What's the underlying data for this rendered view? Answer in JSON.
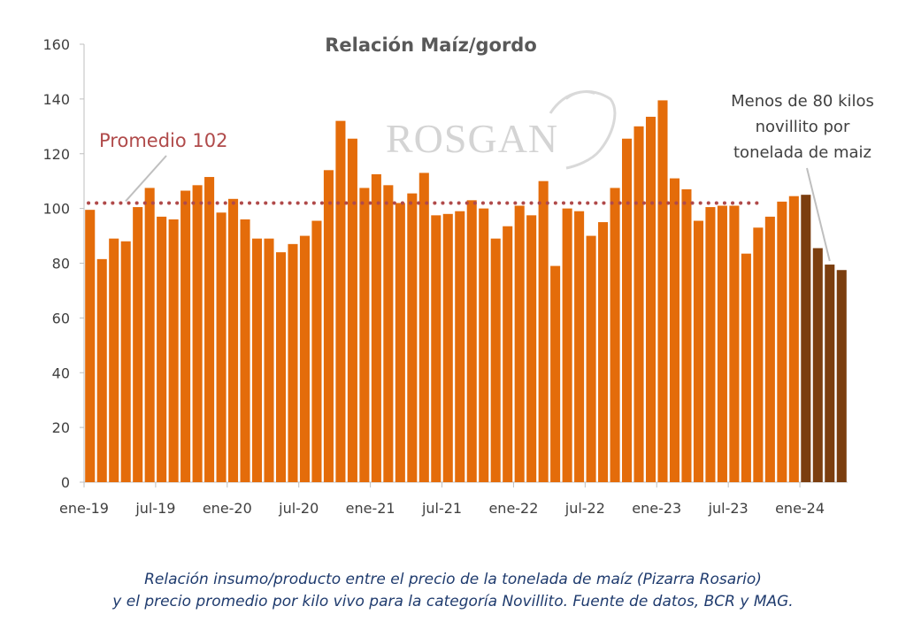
{
  "chart_data": {
    "type": "bar",
    "title": "Relación Maíz/gordo",
    "ylim": [
      0,
      160
    ],
    "yticks": [
      0,
      20,
      40,
      60,
      80,
      100,
      120,
      140,
      160
    ],
    "xtick_labels": [
      "ene-19",
      "jul-19",
      "ene-20",
      "jul-20",
      "ene-21",
      "jul-21",
      "ene-22",
      "jul-22",
      "ene-23",
      "jul-23",
      "ene-24"
    ],
    "values": [
      99.5,
      81.5,
      89,
      88,
      100.5,
      107.5,
      97,
      96,
      106.5,
      108.5,
      111.5,
      98.5,
      103.5,
      96,
      89,
      89,
      84,
      87,
      90,
      95.5,
      114,
      132,
      125.5,
      107.5,
      112.5,
      108.5,
      102,
      105.5,
      113,
      97.5,
      98,
      99,
      103,
      100,
      89,
      93.5,
      101,
      97.5,
      110,
      79,
      100,
      99,
      90,
      95,
      107.5,
      125.5,
      130,
      133.5,
      139.5,
      111,
      107,
      95.5,
      100.5,
      101,
      101,
      83.5,
      93,
      97,
      102.5,
      104.5,
      105,
      85.5,
      79.5,
      77.5
    ],
    "highlight_start_index": 60,
    "average": {
      "value": 102,
      "label": "Promedio 102"
    },
    "annotation": [
      "Menos de 80 kilos",
      "novillito por",
      "tonelada de maiz"
    ],
    "watermark": "ROSGAN",
    "colors": {
      "bar": "#e46c0a",
      "bar_highlight": "#7b3e0f",
      "average_line": "#b04a4a",
      "axis": "#bfbfbf"
    }
  },
  "caption": {
    "line1": "Relación insumo/producto entre el precio de la tonelada de maíz (Pizarra Rosario)",
    "line2": "y el precio promedio por kilo vivo para la categoría Novillito. Fuente de datos, BCR y MAG."
  }
}
